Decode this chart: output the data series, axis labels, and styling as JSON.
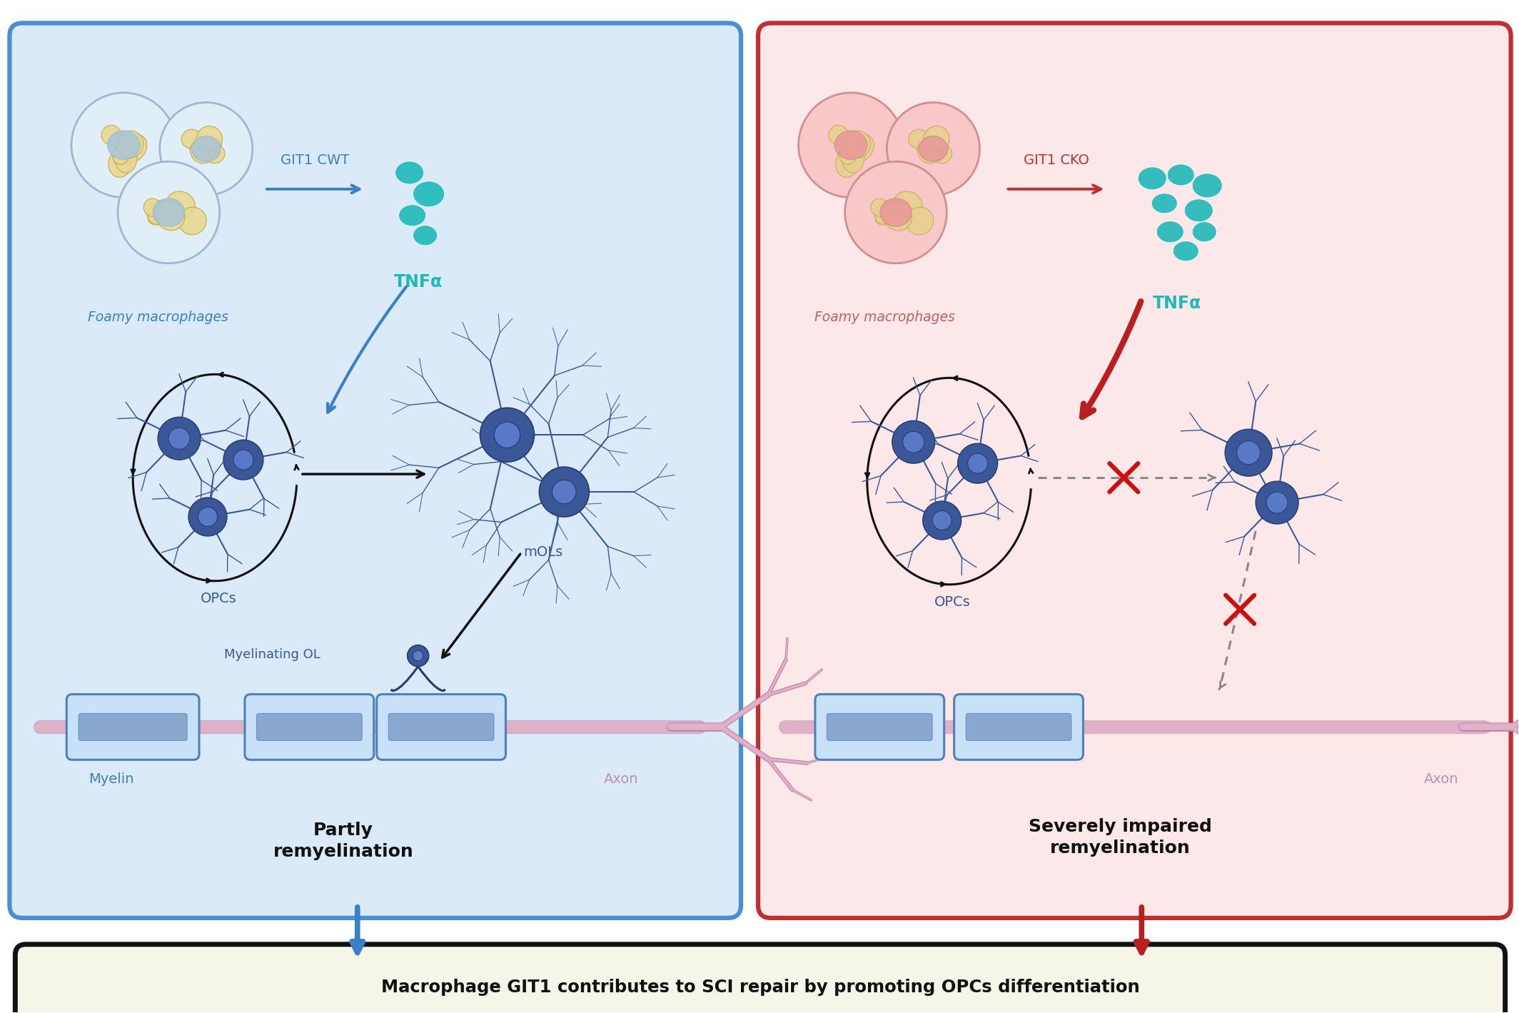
{
  "left_panel_bg": "#daeaf8",
  "right_panel_bg": "#fce8e8",
  "left_border_color": "#4a8fd4",
  "right_border_color": "#c03030",
  "left_label": "GIT1 CWT",
  "right_label": "GIT1 CKO",
  "left_label_color": "#3a80c8",
  "right_label_color": "#c03030",
  "tnfa_color": "#20b8b8",
  "tnfa_text": "TNFα",
  "opc_text": "OPCs",
  "mol_text": "mOLs",
  "myelin_ol_text": "Myelinating OL",
  "myelin_text": "Myelin",
  "axon_text_left": "Axon",
  "axon_text_right": "Axon",
  "foamy_text_left": "Foamy macrophages",
  "foamy_text_right": "Foamy macrophages",
  "partly_text": "Partly\nremyelination",
  "severely_text": "Severely impaired\nremyelination",
  "bottom_text": "Macrophage GIT1 contributes to SCI repair by promoting OPCs differentiation",
  "neuron_body_color": "#3a5898",
  "neuron_body_light": "#5878b8",
  "neuron_outline_color": "#283870",
  "axon_color": "#e0b0c8",
  "axon_outline": "#b880a0",
  "myelin_fill_light": "#c8e0f8",
  "myelin_fill_dark": "#7090c0",
  "myelin_outline": "#5080b8",
  "circle_arrow_color": "#111111",
  "blue_arrow_color": "#3a80c8",
  "red_arrow_color": "#b82020",
  "bottom_box_bg": "#f5f5e8",
  "bottom_box_border": "#111111",
  "white": "#ffffff"
}
